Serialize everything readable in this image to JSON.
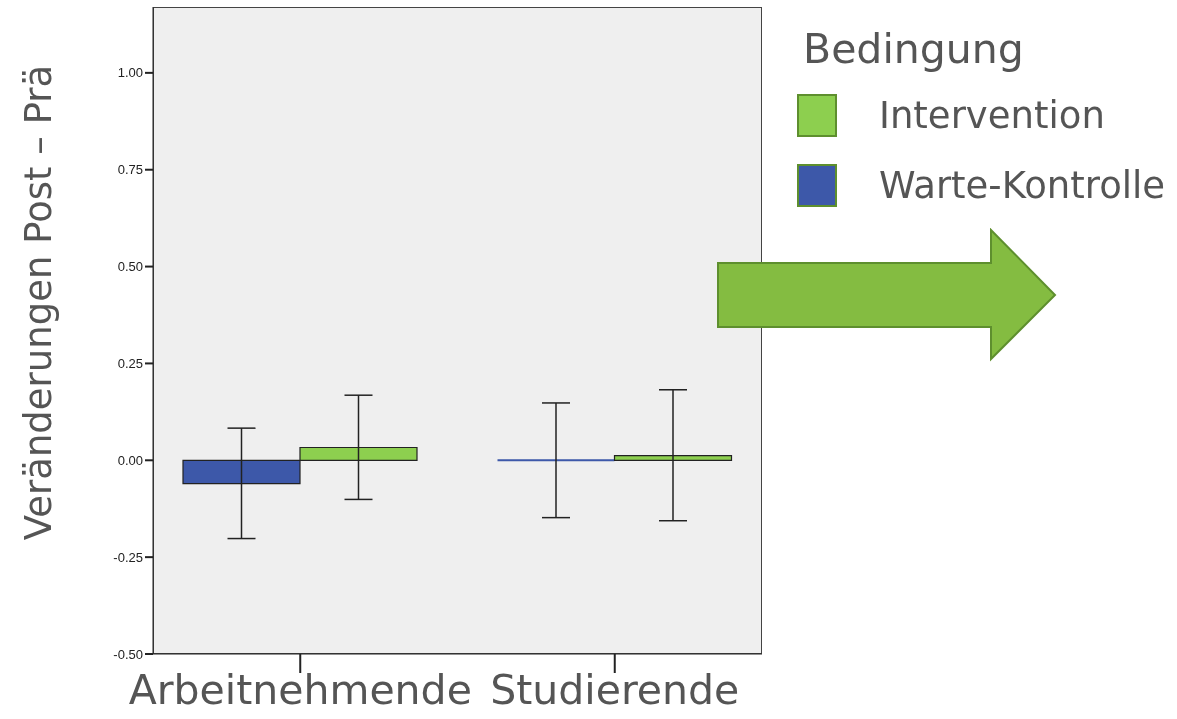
{
  "chart_data": {
    "type": "bar",
    "ylabel": "Veränderungen Post – Prä",
    "legend_title": "Bedingung",
    "categories": [
      "Arbeitnehmende",
      "Studierende"
    ],
    "series": [
      {
        "name": "Warte-Kontrolle",
        "color": "#3d58a9",
        "values": [
          -0.06,
          0.0
        ],
        "errors": [
          [
            -0.202,
            0.083
          ],
          [
            -0.148,
            0.148
          ]
        ]
      },
      {
        "name": "Intervention",
        "color": "#8dcf4f",
        "values": [
          0.033,
          0.012
        ],
        "errors": [
          [
            -0.101,
            0.168
          ],
          [
            -0.156,
            0.182
          ]
        ]
      }
    ],
    "ylim": [
      -0.5,
      1.17
    ],
    "yticks": [
      {
        "value": -0.5,
        "label": "-0.50"
      },
      {
        "value": -0.25,
        "label": "-0.25"
      },
      {
        "value": 0,
        "label": "0.00"
      },
      {
        "value": 0.25,
        "label": "0.25"
      },
      {
        "value": 0.5,
        "label": "0.50"
      },
      {
        "value": 0.75,
        "label": "0.75"
      },
      {
        "value": 1,
        "label": "1.00"
      }
    ],
    "legend": "top right"
  }
}
